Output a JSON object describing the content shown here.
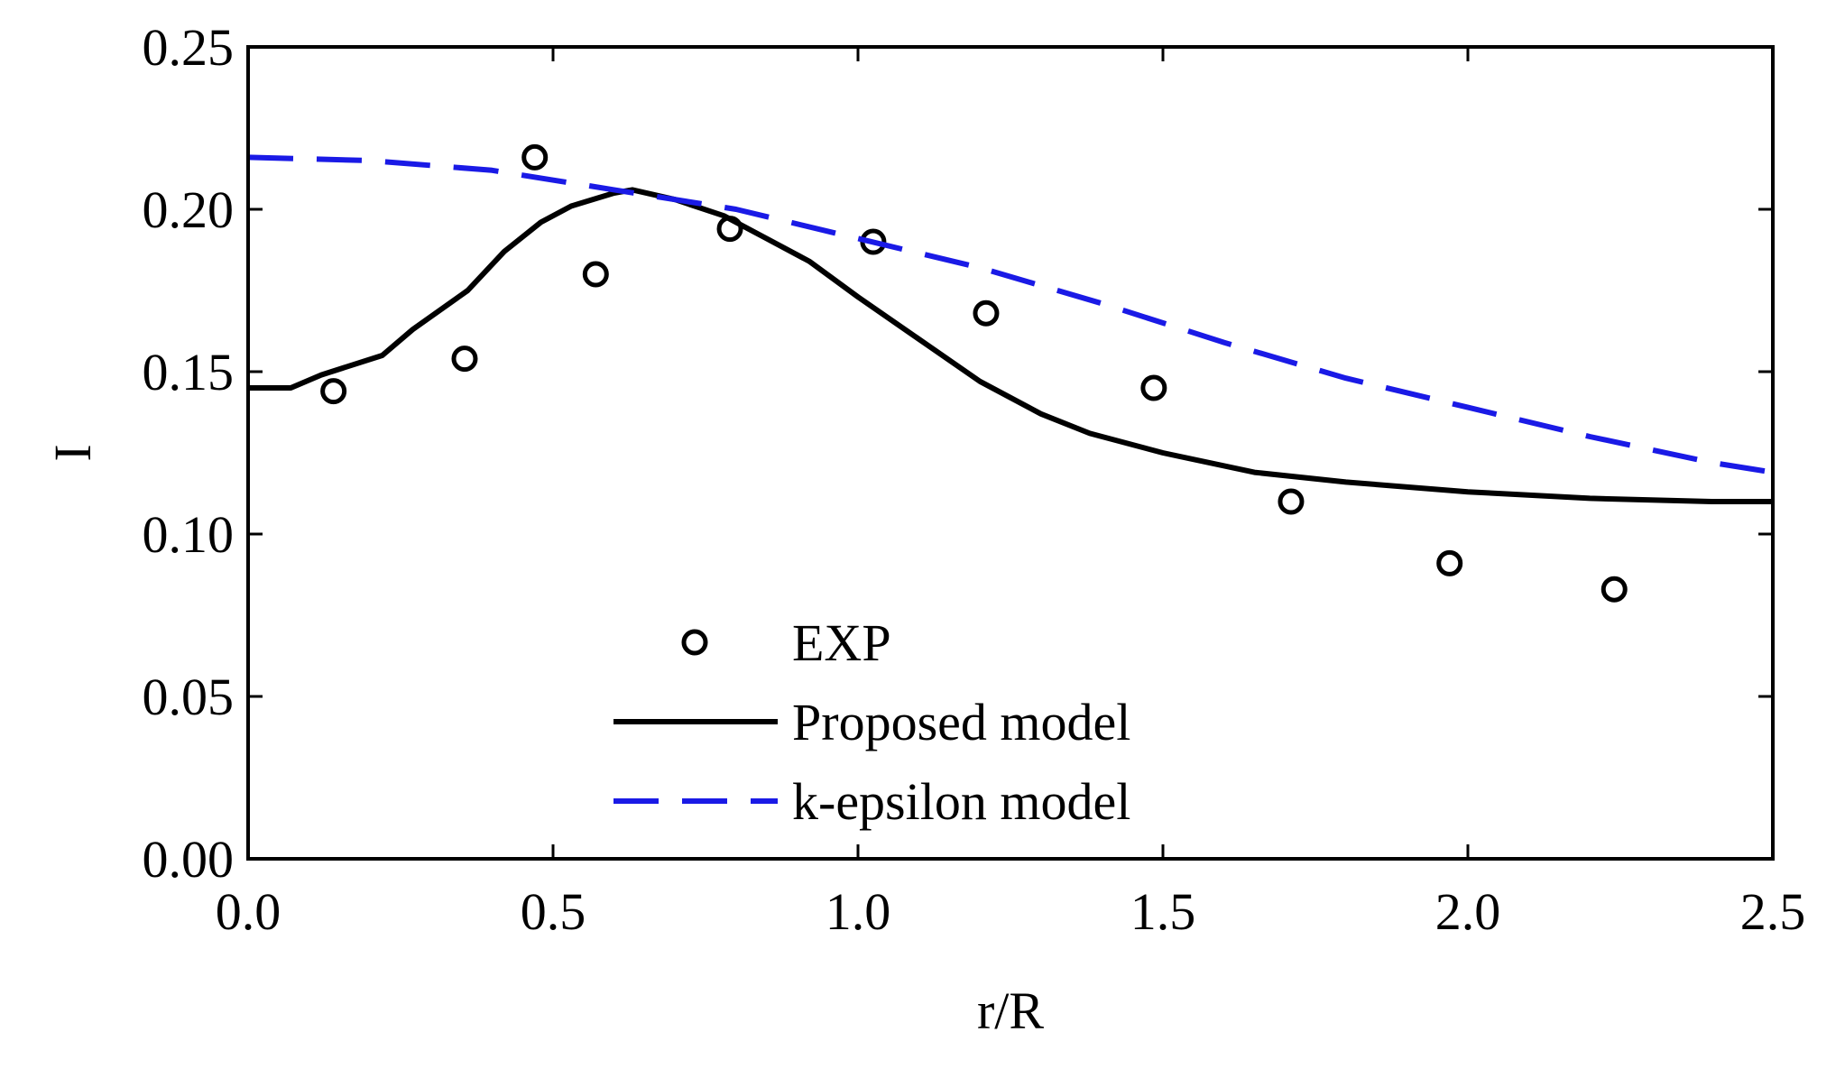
{
  "chart_data": {
    "type": "line",
    "title": "",
    "xlabel": "r/R",
    "ylabel": "I",
    "xlim": [
      0.0,
      2.5
    ],
    "ylim": [
      0.0,
      0.25
    ],
    "xticks": [
      "0.0",
      "0.5",
      "1.0",
      "1.5",
      "2.0",
      "2.5"
    ],
    "yticks": [
      "0.00",
      "0.05",
      "0.10",
      "0.15",
      "0.20",
      "0.25"
    ],
    "grid": false,
    "legend_position": "bottom-center",
    "series": [
      {
        "name": "EXP",
        "style": "markers",
        "marker": "open-circle",
        "color": "#000000",
        "x": [
          0.14,
          0.355,
          0.47,
          0.57,
          0.79,
          1.025,
          1.21,
          1.485,
          1.71,
          1.97,
          2.24
        ],
        "y": [
          0.144,
          0.154,
          0.216,
          0.18,
          0.194,
          0.19,
          0.168,
          0.145,
          0.11,
          0.091,
          0.083
        ]
      },
      {
        "name": "Proposed model",
        "style": "solid",
        "color": "#000000",
        "x": [
          0.0,
          0.07,
          0.12,
          0.22,
          0.27,
          0.36,
          0.42,
          0.48,
          0.53,
          0.6,
          0.63,
          0.7,
          0.78,
          0.85,
          0.92,
          1.0,
          1.1,
          1.2,
          1.3,
          1.38,
          1.5,
          1.65,
          1.8,
          2.0,
          2.2,
          2.4,
          2.5
        ],
        "y": [
          0.145,
          0.145,
          0.149,
          0.155,
          0.163,
          0.175,
          0.187,
          0.196,
          0.201,
          0.205,
          0.206,
          0.203,
          0.198,
          0.191,
          0.184,
          0.173,
          0.16,
          0.147,
          0.137,
          0.131,
          0.125,
          0.119,
          0.116,
          0.113,
          0.111,
          0.11,
          0.11
        ]
      },
      {
        "name": "k-epsilon model",
        "style": "dashed",
        "color": "#1a1ae6",
        "x": [
          0.0,
          0.2,
          0.4,
          0.6,
          0.8,
          1.0,
          1.2,
          1.4,
          1.6,
          1.8,
          2.0,
          2.2,
          2.4,
          2.5
        ],
        "y": [
          0.216,
          0.215,
          0.212,
          0.206,
          0.2,
          0.191,
          0.182,
          0.171,
          0.159,
          0.148,
          0.139,
          0.13,
          0.122,
          0.119
        ]
      }
    ]
  }
}
